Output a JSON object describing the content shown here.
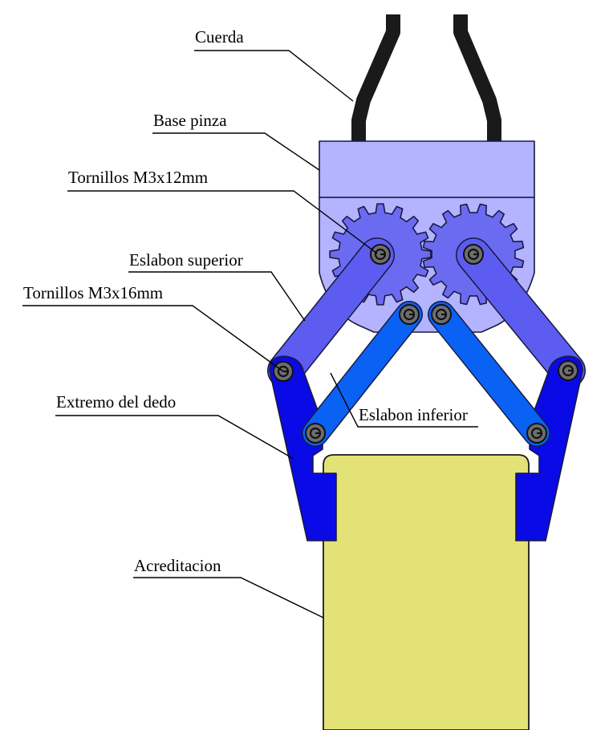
{
  "labels": {
    "cuerda": "Cuerda",
    "base_pinza": "Base pinza",
    "tornillos_12": "Tornillos M3x12mm",
    "eslabon_superior": "Eslabon superior",
    "tornillos_16": "Tornillos M3x16mm",
    "extremo_dedo": "Extremo del dedo",
    "eslabon_inferior": "Eslabon inferior",
    "acreditacion": "Acreditacion"
  },
  "colors": {
    "cord": "#1a1a1a",
    "base": "#b3b3ff",
    "gear": "#6b6bf2",
    "upper_link": "#5c5cf0",
    "lower_link": "#0a62f5",
    "finger": "#0a0ae6",
    "card": "#e3e277",
    "screw": "#6e6e6e"
  },
  "icons": [
    "screw-icon",
    "gear-icon"
  ]
}
